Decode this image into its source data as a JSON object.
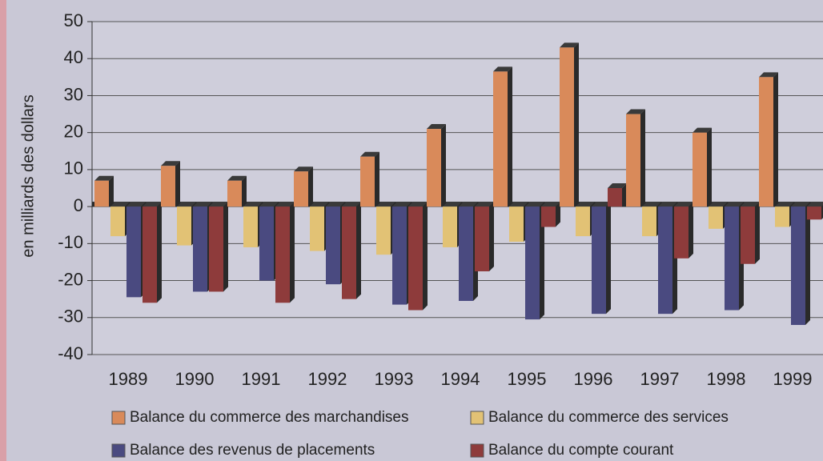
{
  "chart_data": {
    "type": "bar",
    "y_label": "en milliards des dollars",
    "categories": [
      "1989",
      "1990",
      "1991",
      "1992",
      "1993",
      "1994",
      "1995",
      "1996",
      "1997",
      "1998",
      "1999"
    ],
    "series": [
      {
        "name": "Balance du commerce des marchandises",
        "color": "#d98a5a",
        "values": [
          7,
          11,
          7,
          9.5,
          13.5,
          21,
          36.5,
          43,
          25,
          20,
          35
        ]
      },
      {
        "name": "Balance du commerce des services",
        "color": "#e2c275",
        "values": [
          -8,
          -10.5,
          -11,
          -12,
          -13,
          -11,
          -9.5,
          -8,
          -8,
          -6,
          -5.5
        ]
      },
      {
        "name": "Balance des revenus de placements",
        "color": "#4a4a80",
        "values": [
          -24.5,
          -23,
          -20,
          -21,
          -26.5,
          -25.5,
          -30.5,
          -29,
          -29,
          -28,
          -32
        ]
      },
      {
        "name": "Balance du compte courant",
        "color": "#8e3b3b",
        "values": [
          -26,
          -23,
          -26,
          -25,
          -28,
          -17.5,
          -5.5,
          5,
          -14,
          -15.5,
          -3.5
        ]
      }
    ],
    "ylim": [
      -40,
      50
    ],
    "yticks": [
      -40,
      -30,
      -20,
      -10,
      0,
      10,
      20,
      30,
      40,
      50
    ],
    "grid": true
  }
}
